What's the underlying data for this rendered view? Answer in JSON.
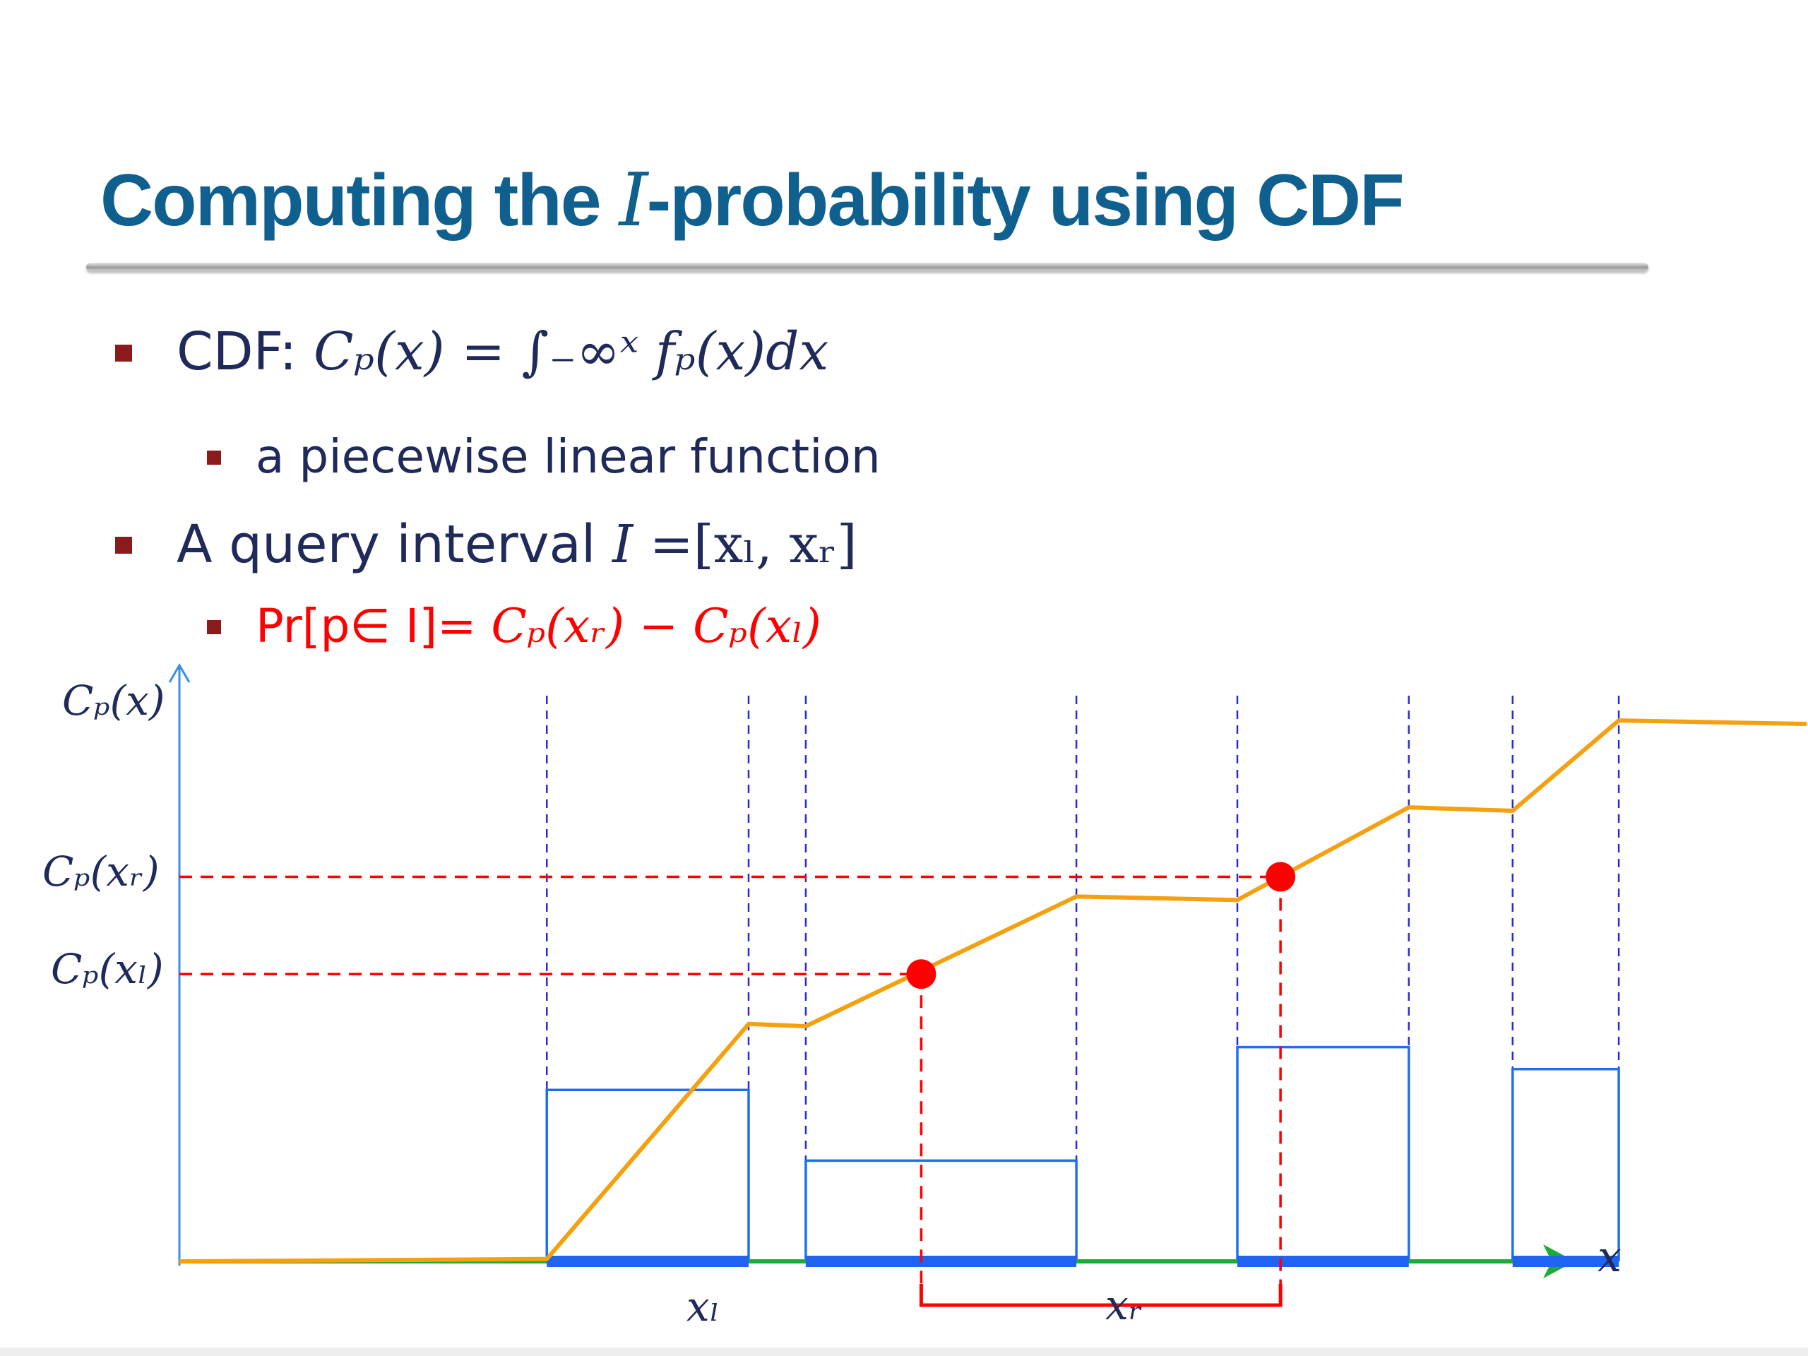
{
  "slide": {
    "title_before": "Computing the ",
    "title_var": "I",
    "title_after": "-probability using CDF",
    "bullets": {
      "cdf_label": "CDF: ",
      "cdf_formula": "Cₚ(x) = ∫₋∞ˣ fₚ(x)dx",
      "piecewise": "a piecewise linear function",
      "query_label": "A query interval ",
      "query_var": "I",
      "query_formula": " =[xₗ, xᵣ]",
      "prob_text": "Pr[p∈ I]= ",
      "prob_formula": "Cₚ(xᵣ) − Cₚ(xₗ)"
    }
  },
  "figure": {
    "y_axis_label": "Cₚ(x)",
    "x_axis_label": "x",
    "level_right_label": "Cₚ(xᵣ)",
    "level_left_label": "Cₚ(xₗ)",
    "interval_left_label": "xₗ",
    "interval_right_label": "xᵣ",
    "colors": {
      "cdf_line": "#f5a00f",
      "x_axis": "#1faa3a",
      "y_axis": "#3a8ee6",
      "histogram": "#1e6ff0",
      "support": "#1e64f0",
      "query_markers": "#ff0000",
      "breakpoint_guides": "#2b2bd6"
    },
    "cdf_points": [
      {
        "x": 0,
        "y": 0
      },
      {
        "x": 315,
        "y": 2
      },
      {
        "x": 488,
        "y": 205
      },
      {
        "x": 537,
        "y": 203
      },
      {
        "x": 769,
        "y": 315
      },
      {
        "x": 907,
        "y": 312
      },
      {
        "x": 1054,
        "y": 392
      },
      {
        "x": 1143,
        "y": 389
      },
      {
        "x": 1234,
        "y": 467
      },
      {
        "x": 1395,
        "y": 464
      }
    ],
    "histogram_bars": [
      {
        "x0": 315,
        "x1": 488,
        "height": 148
      },
      {
        "x0": 537,
        "x1": 769,
        "height": 87
      },
      {
        "x0": 907,
        "x1": 1054,
        "height": 185
      },
      {
        "x0": 1143,
        "x1": 1234,
        "height": 166
      }
    ],
    "query_points": [
      {
        "name": "xl",
        "x": 636,
        "y": 248
      },
      {
        "name": "xr",
        "x": 944,
        "y": 332
      }
    ],
    "x_range": [
      0,
      1395
    ],
    "y_range": [
      0,
      500
    ]
  }
}
